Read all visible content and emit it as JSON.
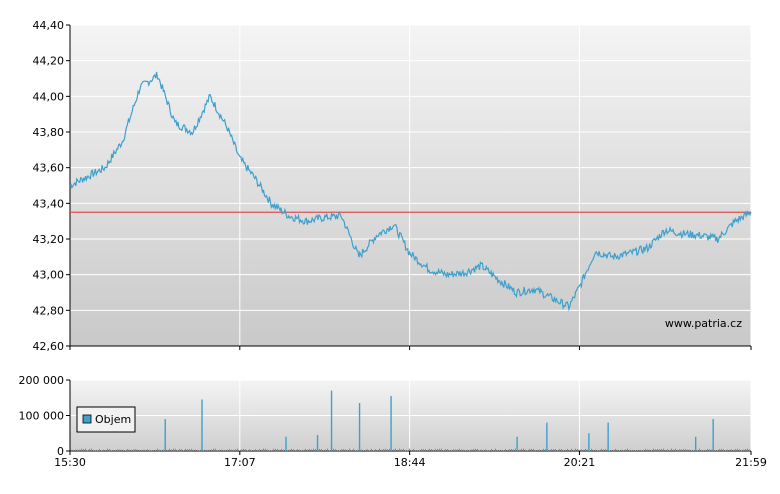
{
  "watermark": "www.patria.cz",
  "colors": {
    "price_line": "#3ea0cc",
    "reference_line": "#e05050",
    "volume_bar": "#3ea0cc",
    "grid": "#ffffff",
    "axis": "#000000"
  },
  "chart_data": [
    {
      "type": "line",
      "panel": "price",
      "ylim": [
        42.6,
        44.4
      ],
      "y_ticks": [
        "44,40",
        "44,20",
        "44,00",
        "43,80",
        "43,60",
        "43,40",
        "43,20",
        "43,00",
        "42,80",
        "42,60"
      ],
      "y_tick_values": [
        44.4,
        44.2,
        44.0,
        43.8,
        43.6,
        43.4,
        43.2,
        43.0,
        42.8,
        42.6
      ],
      "reference_value": 43.35,
      "x": [
        "15:30",
        "15:40",
        "15:50",
        "16:00",
        "16:10",
        "16:20",
        "16:30",
        "16:40",
        "16:50",
        "17:00",
        "17:07",
        "17:15",
        "17:25",
        "17:35",
        "17:45",
        "17:55",
        "18:05",
        "18:15",
        "18:25",
        "18:35",
        "18:44",
        "18:55",
        "19:05",
        "19:15",
        "19:25",
        "19:35",
        "19:45",
        "19:55",
        "20:05",
        "20:15",
        "20:21",
        "20:30",
        "20:40",
        "20:50",
        "21:00",
        "21:10",
        "21:20",
        "21:30",
        "21:40",
        "21:50",
        "21:59"
      ],
      "series": [
        {
          "values": [
            43.5,
            43.55,
            43.6,
            43.75,
            44.05,
            44.12,
            43.85,
            43.8,
            44.0,
            43.82,
            43.65,
            43.55,
            43.4,
            43.33,
            43.3,
            43.32,
            43.33,
            43.1,
            43.22,
            43.28,
            43.12,
            43.03,
            43.0,
            43.01,
            43.05,
            42.97,
            42.9,
            42.92,
            42.87,
            42.82,
            42.93,
            43.13,
            43.1,
            43.12,
            43.15,
            43.25,
            43.23,
            43.22,
            43.2,
            43.3,
            43.35
          ]
        }
      ]
    },
    {
      "type": "bar",
      "panel": "volume",
      "ylim": [
        0,
        200000
      ],
      "y_ticks": [
        "200 000",
        "100 000",
        "0"
      ],
      "y_tick_values": [
        200000,
        100000,
        0
      ],
      "x_ticks": [
        "15:30",
        "17:07",
        "18:44",
        "20:21",
        "21:59"
      ],
      "legend": [
        "Objem"
      ],
      "legend_position": "left",
      "baseline_value": 4000,
      "spikes": [
        {
          "x": "16:24",
          "value": 90000
        },
        {
          "x": "16:45",
          "value": 145000
        },
        {
          "x": "17:33",
          "value": 40000
        },
        {
          "x": "17:51",
          "value": 45000
        },
        {
          "x": "17:59",
          "value": 170000
        },
        {
          "x": "18:15",
          "value": 135000
        },
        {
          "x": "18:33",
          "value": 155000
        },
        {
          "x": "19:45",
          "value": 40000
        },
        {
          "x": "20:02",
          "value": 80000
        },
        {
          "x": "20:26",
          "value": 50000
        },
        {
          "x": "20:37",
          "value": 80000
        },
        {
          "x": "21:27",
          "value": 40000
        },
        {
          "x": "21:37",
          "value": 90000
        }
      ]
    }
  ]
}
